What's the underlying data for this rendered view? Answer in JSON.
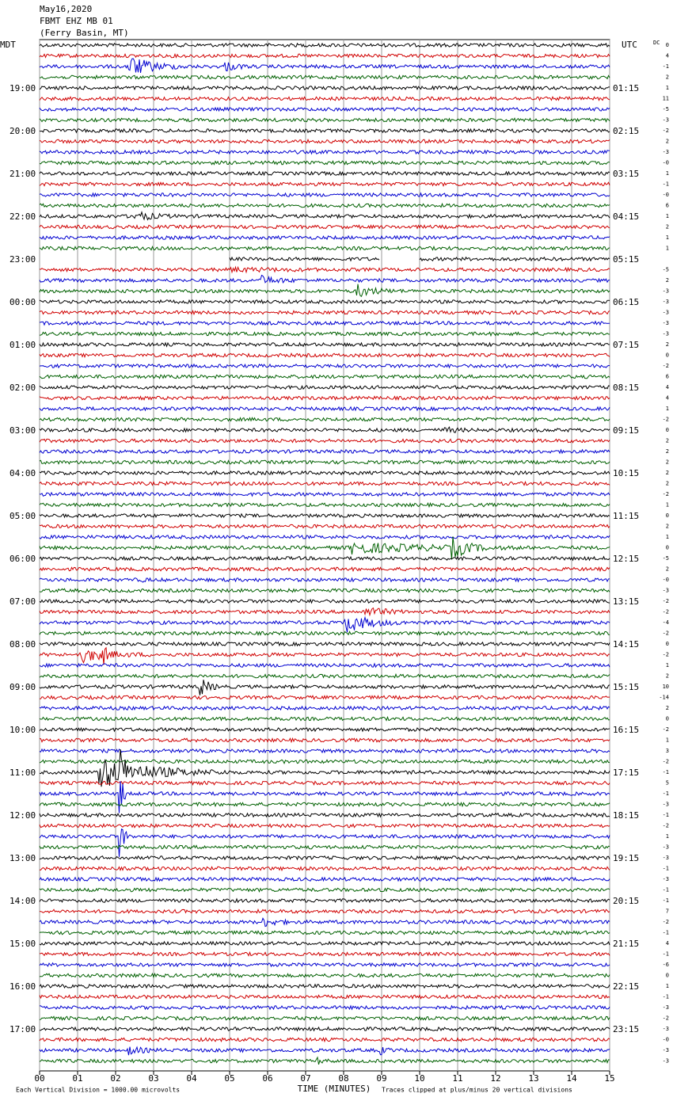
{
  "header": {
    "lines": [
      "May16,2020",
      "FBMT EHZ MB 01",
      "(Ferry Basin, MT)"
    ]
  },
  "left_label": "MDT",
  "right_label": "UTC",
  "dc_label": "DC",
  "left_times": [
    "19:00",
    "20:00",
    "21:00",
    "22:00",
    "23:00",
    "00:00",
    "01:00",
    "02:00",
    "03:00",
    "04:00",
    "05:00",
    "06:00",
    "07:00",
    "08:00",
    "09:00",
    "10:00",
    "11:00",
    "12:00",
    "13:00",
    "14:00",
    "15:00",
    "16:00",
    "17:00"
  ],
  "right_times": [
    "01:15",
    "02:15",
    "03:15",
    "04:15",
    "05:15",
    "06:15",
    "07:15",
    "08:15",
    "09:15",
    "10:15",
    "11:15",
    "12:15",
    "13:15",
    "14:15",
    "15:15",
    "16:15",
    "17:15",
    "18:15",
    "19:15",
    "20:15",
    "21:15",
    "22:15",
    "23:15"
  ],
  "dc_offsets": [
    "0",
    "4",
    "-1",
    "2",
    "1",
    "11",
    "-5",
    "-3",
    "-2",
    "2",
    "-3",
    "-0",
    "1",
    "-1",
    "-0",
    "6",
    "1",
    "2",
    "1",
    "1",
    null,
    "-5",
    "2",
    "-3",
    "-3",
    "-3",
    "-3",
    "-3",
    "2",
    "0",
    "-2",
    "6",
    "4",
    "4",
    "1",
    "-2",
    "0",
    "2",
    "2",
    "2",
    "2",
    "2",
    "-2",
    "1",
    "0",
    "2",
    "1",
    "0",
    "-5",
    "2",
    "-0",
    "-3",
    "-2",
    "-2",
    "-4",
    "-2",
    "0",
    "-2",
    "1",
    "2",
    "10",
    "-14",
    "2",
    "0",
    "-2",
    "1",
    "3",
    "-2",
    "-1",
    "5",
    "-1",
    "-3",
    "-1",
    "-2",
    "1",
    "-3",
    "-3",
    "-1",
    "-3",
    "-1",
    "-1",
    "7",
    "-2",
    "-1",
    "4",
    "-1",
    "-6",
    "0",
    "1",
    "-1",
    "-3",
    "-2",
    "-3",
    "-0",
    "-3",
    "-3"
  ],
  "xticks": [
    "00",
    "01",
    "02",
    "03",
    "04",
    "05",
    "06",
    "07",
    "08",
    "09",
    "10",
    "11",
    "12",
    "13",
    "14",
    "15"
  ],
  "xlabel": "TIME (MINUTES)",
  "footer": {
    "scale": "Each Vertical Division = 1000.00 microvolts",
    "clip": "Traces clipped at plus/minus 20 vertical divisions"
  }
}
